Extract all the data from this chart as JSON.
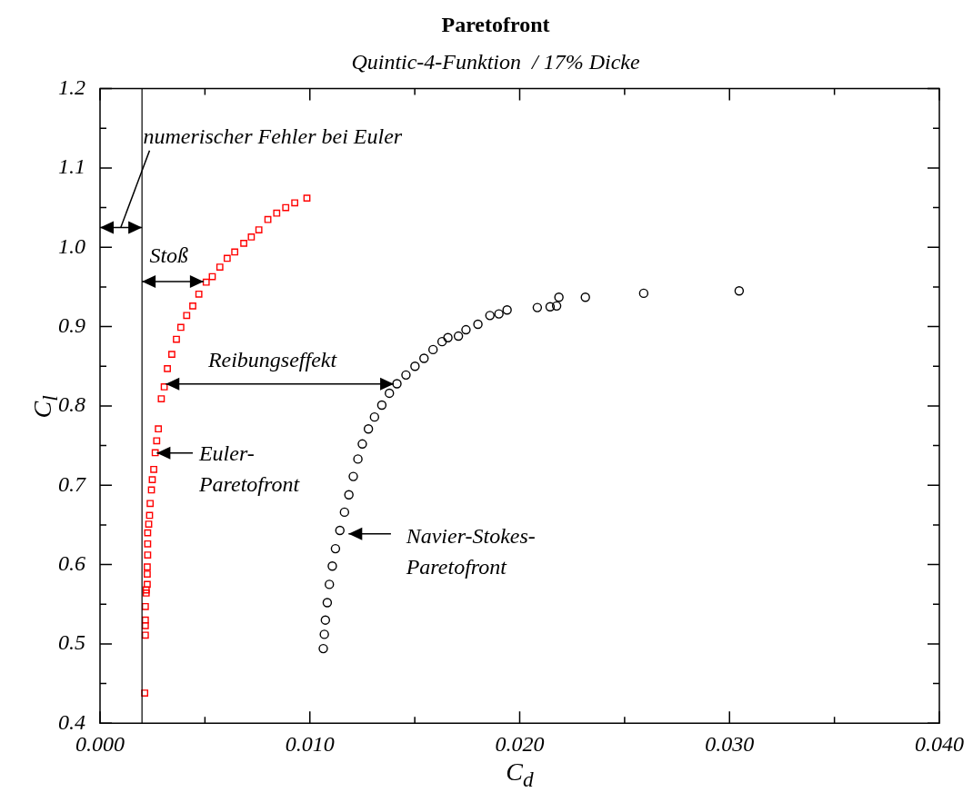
{
  "chart_data": {
    "type": "scatter",
    "title": "Paretofront",
    "subtitle": "Quintic-4-Funktion  / 17% Dicke",
    "xlabel": "C$_{d}$",
    "ylabel": "C$_{l}$",
    "xlim": [
      0,
      0.04
    ],
    "xticks": [
      {
        "value": 0,
        "label": "0.000"
      },
      {
        "value": 0.005,
        "label": null
      },
      {
        "value": 0.01,
        "label": "0.010"
      },
      {
        "value": 0.015,
        "label": null
      },
      {
        "value": 0.02,
        "label": "0.020"
      },
      {
        "value": 0.025,
        "label": null
      },
      {
        "value": 0.03,
        "label": "0.030"
      },
      {
        "value": 0.035,
        "label": null
      },
      {
        "value": 0.04,
        "label": "0.040"
      }
    ],
    "ylim": [
      0.4,
      1.2
    ],
    "yticks": [
      0.4,
      {
        "value": 0.45,
        "label": null
      },
      0.5,
      {
        "value": 0.55,
        "label": null
      },
      0.6,
      {
        "value": 0.65,
        "label": null
      },
      0.7,
      {
        "value": 0.75,
        "label": null
      },
      0.8,
      {
        "value": 0.85,
        "label": null
      },
      0.9,
      {
        "value": 0.95,
        "label": null
      },
      {
        "value": 1.0,
        "label": "1.0"
      },
      {
        "value": 1.05,
        "label": null
      },
      1.1,
      {
        "value": 1.15,
        "label": null
      },
      1.2
    ],
    "series": [
      {
        "color": "#ff0000",
        "marker": "square",
        "x": [
          0.00213,
          0.00216,
          0.00216,
          0.00216,
          0.00216,
          0.0022,
          0.0022,
          0.00225,
          0.00225,
          0.00225,
          0.00227,
          0.00227,
          0.00227,
          0.00232,
          0.00236,
          0.00239,
          0.00245,
          0.00249,
          0.00256,
          0.00263,
          0.0027,
          0.00278,
          0.00292,
          0.00306,
          0.00321,
          0.00342,
          0.00364,
          0.00385,
          0.00413,
          0.00442,
          0.00471,
          0.00506,
          0.00535,
          0.00571,
          0.00606,
          0.00642,
          0.00685,
          0.00721,
          0.00757,
          0.008,
          0.00842,
          0.00885,
          0.00928,
          0.00986
        ],
        "values": [
          0.438,
          0.511,
          0.523,
          0.53,
          0.547,
          0.564,
          0.568,
          0.575,
          0.588,
          0.597,
          0.612,
          0.626,
          0.64,
          0.651,
          0.662,
          0.677,
          0.694,
          0.707,
          0.72,
          0.741,
          0.756,
          0.771,
          0.809,
          0.824,
          0.847,
          0.865,
          0.884,
          0.899,
          0.914,
          0.926,
          0.941,
          0.956,
          0.963,
          0.975,
          0.986,
          0.994,
          1.005,
          1.013,
          1.022,
          1.035,
          1.043,
          1.05,
          1.056,
          1.062
        ]
      },
      {
        "color": "#000000",
        "marker": "circle",
        "x": [
          0.01064,
          0.01069,
          0.01074,
          0.01083,
          0.01093,
          0.01107,
          0.01122,
          0.01143,
          0.01165,
          0.01186,
          0.01207,
          0.01229,
          0.0125,
          0.01279,
          0.01308,
          0.01343,
          0.01379,
          0.01415,
          0.01458,
          0.01501,
          0.01544,
          0.01587,
          0.0163,
          0.01658,
          0.01708,
          0.01744,
          0.01801,
          0.01858,
          0.01901,
          0.0194,
          0.02084,
          0.02145,
          0.02176,
          0.02187,
          0.02313,
          0.02591,
          0.03046
        ],
        "values": [
          0.494,
          0.512,
          0.53,
          0.552,
          0.575,
          0.598,
          0.62,
          0.643,
          0.666,
          0.688,
          0.711,
          0.733,
          0.752,
          0.771,
          0.786,
          0.801,
          0.816,
          0.828,
          0.839,
          0.85,
          0.86,
          0.871,
          0.881,
          0.886,
          0.888,
          0.896,
          0.903,
          0.914,
          0.916,
          0.921,
          0.924,
          0.925,
          0.926,
          0.937,
          0.937,
          0.942,
          0.945
        ]
      }
    ],
    "ref_lines": [
      {
        "axis": "x",
        "value": 0.002,
        "color": "#000000"
      }
    ],
    "annotations": [
      "numerischer Fehler bei Euler",
      "Stoß",
      "Reibungseffekt",
      "Euler-Paretofront",
      "Navier-Stokes-Paretofront"
    ]
  }
}
